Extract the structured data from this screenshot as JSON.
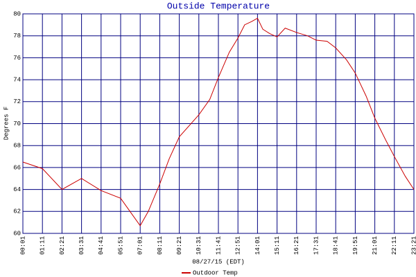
{
  "chart_data": {
    "type": "line",
    "title": "Outside Temperature",
    "x_label": "08/27/15 (EDT)",
    "y_label": "Degrees F",
    "x": [
      "00:01",
      "01:11",
      "02:21",
      "03:31",
      "04:41",
      "05:51",
      "06:30",
      "07:01",
      "07:30",
      "08:11",
      "08:45",
      "09:21",
      "10:31",
      "11:10",
      "11:41",
      "12:20",
      "12:51",
      "13:15",
      "13:40",
      "14:01",
      "14:20",
      "14:45",
      "15:11",
      "15:40",
      "16:21",
      "17:00",
      "17:31",
      "18:10",
      "18:41",
      "19:20",
      "19:51",
      "20:30",
      "21:01",
      "21:40",
      "22:11",
      "22:50",
      "23:21"
    ],
    "series": [
      {
        "name": "Outdoor Temp",
        "color": "#cc0000",
        "values": [
          66.5,
          65.9,
          64.0,
          65.0,
          63.9,
          63.2,
          61.8,
          60.7,
          62.0,
          64.5,
          66.8,
          68.8,
          70.8,
          72.2,
          74.2,
          76.5,
          77.8,
          79.0,
          79.3,
          79.6,
          78.6,
          78.2,
          77.9,
          78.7,
          78.3,
          78.0,
          77.6,
          77.5,
          76.9,
          75.8,
          74.6,
          72.5,
          70.5,
          68.5,
          67.0,
          65.2,
          64.0
        ]
      }
    ],
    "xlim": [
      "00:01",
      "23:21"
    ],
    "xticks": [
      "00:01",
      "01:11",
      "02:21",
      "03:31",
      "04:41",
      "05:51",
      "07:01",
      "08:11",
      "09:21",
      "10:31",
      "11:41",
      "12:51",
      "14:01",
      "15:11",
      "16:21",
      "17:31",
      "18:41",
      "19:51",
      "21:01",
      "22:11",
      "23:21"
    ],
    "ylim": [
      60,
      80
    ],
    "yticks": [
      60,
      62,
      64,
      66,
      68,
      70,
      72,
      74,
      76,
      78,
      80
    ],
    "grid": true,
    "grid_color": "#000080"
  }
}
